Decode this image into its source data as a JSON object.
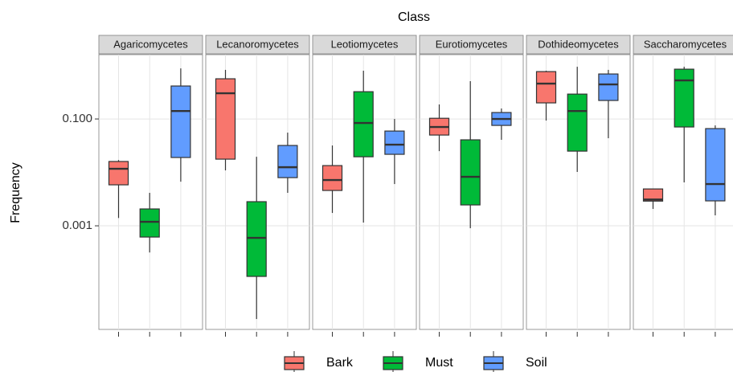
{
  "chart_data": {
    "type": "boxplot",
    "facet_title": "Class",
    "y_label": "Frequency",
    "log_y": true,
    "grid": true,
    "legend": "bottom",
    "ylim": [
      1.15e-05,
      1.6
    ],
    "yticks": [
      {
        "value": 0.001,
        "label": "0.001"
      },
      {
        "value": 0.1,
        "label": "0.100"
      }
    ],
    "facets": [
      "Agaricomycetes",
      "Lecanoromycetes",
      "Leotiomycetes",
      "Eurotiomycetes",
      "Dothideomycetes",
      "Saccharomycetes"
    ],
    "series": [
      {
        "name": "Bark",
        "color": "#f8766d",
        "boxes": [
          {
            "min": 0.0014,
            "q1": 0.00585,
            "median": 0.0117,
            "q3": 0.016,
            "max": 0.017
          },
          {
            "min": 0.0109,
            "q1": 0.0177,
            "median": 0.303,
            "q3": 0.565,
            "max": 0.83
          },
          {
            "min": 0.00174,
            "q1": 0.00459,
            "median": 0.0072,
            "q3": 0.0134,
            "max": 0.0319
          },
          {
            "min": 0.025,
            "q1": 0.05,
            "median": 0.0708,
            "q3": 0.103,
            "max": 0.187
          },
          {
            "min": 0.0933,
            "q1": 0.2,
            "median": 0.459,
            "q3": 0.77,
            "max": 0.8
          },
          {
            "min": 0.00207,
            "q1": 0.0029,
            "median": 0.0031,
            "q3": 0.0049,
            "max": 0.0049
          }
        ]
      },
      {
        "name": "Must",
        "color": "#00ba38",
        "boxes": [
          {
            "min": 0.000317,
            "q1": 0.000616,
            "median": 0.00119,
            "q3": 0.00207,
            "max": 0.00414
          },
          {
            "min": 1.8e-05,
            "q1": 0.000113,
            "median": 0.000594,
            "q3": 0.00283,
            "max": 0.0196
          },
          {
            "min": 0.00115,
            "q1": 0.0196,
            "median": 0.084,
            "q3": 0.324,
            "max": 0.8
          },
          {
            "min": 0.000902,
            "q1": 0.00246,
            "median": 0.00826,
            "q3": 0.0407,
            "max": 0.51
          },
          {
            "min": 0.0102,
            "q1": 0.025,
            "median": 0.141,
            "q3": 0.292,
            "max": 0.948
          },
          {
            "min": 0.0065,
            "q1": 0.0708,
            "median": 0.527,
            "q3": 0.855,
            "max": 0.948
          }
        ]
      },
      {
        "name": "Soil",
        "color": "#619cff",
        "boxes": [
          {
            "min": 0.0067,
            "q1": 0.019,
            "median": 0.141,
            "q3": 0.414,
            "max": 0.885
          },
          {
            "min": 0.00414,
            "q1": 0.00798,
            "median": 0.0125,
            "q3": 0.0319,
            "max": 0.0555
          },
          {
            "min": 0.00605,
            "q1": 0.0218,
            "median": 0.033,
            "q3": 0.0594,
            "max": 0.1
          },
          {
            "min": 0.0407,
            "q1": 0.0758,
            "median": 0.1,
            "q3": 0.132,
            "max": 0.157
          },
          {
            "min": 0.0436,
            "q1": 0.222,
            "median": 0.444,
            "q3": 0.695,
            "max": 0.83
          },
          {
            "min": 0.00157,
            "q1": 0.00293,
            "median": 0.00605,
            "q3": 0.066,
            "max": 0.0758
          }
        ]
      }
    ]
  }
}
